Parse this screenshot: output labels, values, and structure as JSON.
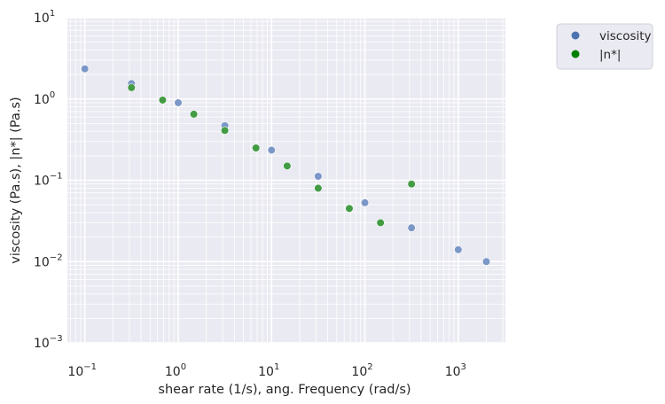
{
  "chart_data": {
    "type": "scatter",
    "xlabel": "shear rate (1/s), ang. Frequency (rad/s)",
    "ylabel": "viscosity (Pa.s), |n*| (Pa.s)",
    "x_scale": "log",
    "y_scale": "log",
    "xlim": [
      0.065,
      3200
    ],
    "ylim": [
      0.001,
      10
    ],
    "x_ticks": [
      {
        "base": "10",
        "exp": "−1",
        "value": 0.1
      },
      {
        "base": "10",
        "exp": "0",
        "value": 1
      },
      {
        "base": "10",
        "exp": "1",
        "value": 10
      },
      {
        "base": "10",
        "exp": "2",
        "value": 100
      },
      {
        "base": "10",
        "exp": "3",
        "value": 1000
      }
    ],
    "y_ticks": [
      {
        "base": "10",
        "exp": "−3",
        "value": 0.001
      },
      {
        "base": "10",
        "exp": "−2",
        "value": 0.01
      },
      {
        "base": "10",
        "exp": "−1",
        "value": 0.1
      },
      {
        "base": "10",
        "exp": "0",
        "value": 1
      },
      {
        "base": "10",
        "exp": "1",
        "value": 10
      }
    ],
    "grid": true,
    "legend_position": "outside top-right",
    "series": [
      {
        "name": "viscosity",
        "color": "#4c72b0",
        "marker_color": "#7a97c7",
        "x": [
          0.1,
          0.316,
          1,
          3.16,
          10,
          31.6,
          100,
          316,
          1000,
          2000
        ],
        "y": [
          2.35,
          1.55,
          0.9,
          0.47,
          0.235,
          0.112,
          0.053,
          0.026,
          0.014,
          0.01
        ]
      },
      {
        "name": "|n*|",
        "color": "#008000",
        "marker_color": "#439c43",
        "x": [
          0.316,
          0.681,
          1.47,
          3.16,
          6.81,
          14.7,
          31.6,
          68.1,
          147,
          316
        ],
        "y": [
          1.38,
          0.97,
          0.65,
          0.41,
          0.25,
          0.15,
          0.08,
          0.045,
          0.03,
          0.09
        ]
      }
    ]
  }
}
